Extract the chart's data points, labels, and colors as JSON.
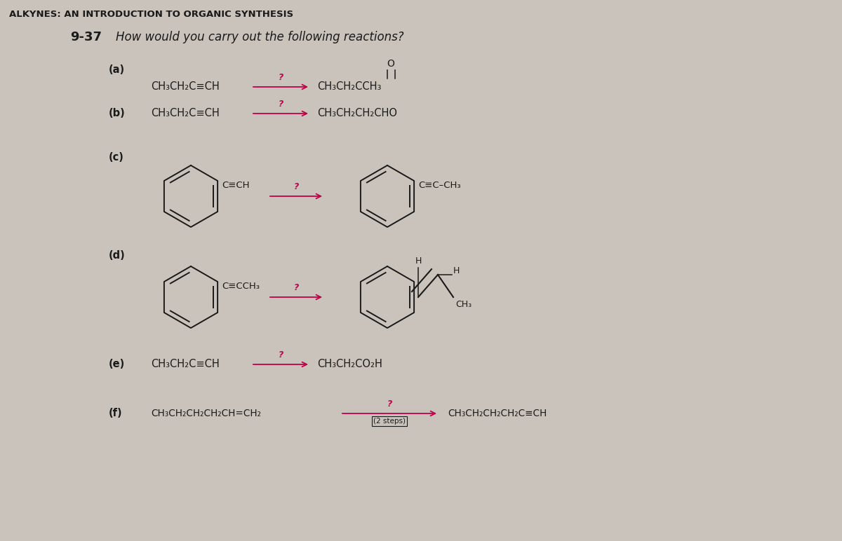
{
  "bg_color": "#c9c3bb",
  "title": "ALKYNES: AN INTRODUCTION TO ORGANIC SYNTHESIS",
  "title_fontsize": 9.5,
  "problem_number": "9-37",
  "problem_text": "How would you carry out the following reactions?",
  "arrow_color": "#c0004a",
  "text_color": "#1a1a1a",
  "reactions": {
    "a_label": "(a)",
    "a_reactant": "CH₃CH₂C≡CH",
    "a_product": "CH₃CH₂CCH₃",
    "b_label": "(b)",
    "b_reactant": "CH₃CH₂C≡CH",
    "b_product": "CH₃CH₂CH₂CHO",
    "c_label": "(c)",
    "c_reactant_sub": "C≡CH",
    "c_product_sub": "C≡C–CH₃",
    "d_label": "(d)",
    "d_reactant_sub": "C≡CCH₃",
    "e_label": "(e)",
    "e_reactant": "CH₃CH₂C≡CH",
    "e_product": "CH₃CH₂CO₂H",
    "f_label": "(f)",
    "f_reactant": "CH₃CH₂CH₂CH₂CH=CH₂",
    "f_product": "CH₃CH₂CH₂CH₂C≡CH",
    "f_note": "(2 steps)"
  }
}
